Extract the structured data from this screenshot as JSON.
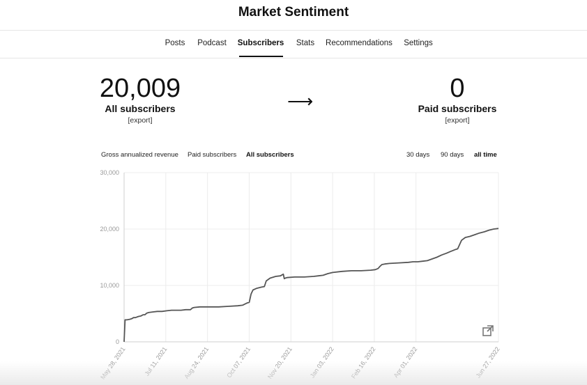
{
  "app": {
    "title": "Market Sentiment"
  },
  "nav": {
    "tabs": [
      {
        "label": "Posts"
      },
      {
        "label": "Podcast"
      },
      {
        "label": "Subscribers",
        "active": true
      },
      {
        "label": "Stats"
      },
      {
        "label": "Recommendations"
      },
      {
        "label": "Settings"
      }
    ]
  },
  "summary": {
    "all": {
      "value": "20,009",
      "label": "All subscribers",
      "export": "[export]"
    },
    "arrow": "⟶",
    "paid": {
      "value": "0",
      "label": "Paid subscribers",
      "export": "[export]"
    }
  },
  "metric_tabs": [
    {
      "label": "Gross annualized revenue"
    },
    {
      "label": "Paid subscribers"
    },
    {
      "label": "All subscribers",
      "active": true
    }
  ],
  "range_tabs": [
    {
      "label": "30 days"
    },
    {
      "label": "90 days"
    },
    {
      "label": "all time",
      "active": true
    }
  ],
  "icons": {
    "external": "open-in-new-window-icon"
  },
  "colors": {
    "line": "#555555",
    "grid": "#ececec",
    "axis": "#cfcfcf",
    "tick": "#9a9a9a"
  },
  "chart_data": {
    "type": "line",
    "title": "",
    "xlabel": "",
    "ylabel": "",
    "ylim": [
      0,
      30000
    ],
    "yticks": [
      0,
      10000,
      20000,
      30000
    ],
    "ytick_labels": [
      "0",
      "10,000",
      "20,000",
      "30,000"
    ],
    "x_range": [
      0,
      395
    ],
    "xticks": [
      0,
      44,
      88,
      132,
      176,
      220,
      264,
      308,
      395
    ],
    "xtick_labels": [
      "May 28, 2021",
      "Jul 11, 2021",
      "Aug 24, 2021",
      "Oct 07, 2021",
      "Nov 20, 2021",
      "Jan 03, 2022",
      "Feb 16, 2022",
      "Apr 01, 2022",
      "Jun 27, 2022"
    ],
    "series": [
      {
        "name": "All subscribers",
        "x": [
          0,
          1,
          3,
          6,
          8,
          10,
          12,
          15,
          18,
          20,
          22,
          24,
          26,
          30,
          35,
          40,
          45,
          50,
          55,
          60,
          65,
          70,
          72,
          74,
          80,
          90,
          100,
          110,
          120,
          125,
          130,
          132,
          134,
          136,
          140,
          145,
          148,
          150,
          154,
          160,
          165,
          168,
          169,
          170,
          172,
          180,
          190,
          200,
          205,
          210,
          215,
          220,
          230,
          240,
          250,
          260,
          265,
          268,
          270,
          272,
          275,
          280,
          290,
          300,
          305,
          310,
          315,
          320,
          330,
          335,
          340,
          344,
          350,
          352,
          356,
          360,
          365,
          370,
          375,
          380,
          385,
          390,
          395
        ],
        "y": [
          0,
          3900,
          3900,
          4000,
          4100,
          4300,
          4300,
          4500,
          4600,
          4800,
          4800,
          5100,
          5200,
          5300,
          5400,
          5400,
          5500,
          5600,
          5600,
          5600,
          5700,
          5700,
          6000,
          6100,
          6200,
          6200,
          6200,
          6300,
          6400,
          6500,
          6900,
          7000,
          8500,
          9200,
          9500,
          9700,
          9800,
          10800,
          11300,
          11600,
          11700,
          12000,
          11200,
          11300,
          11400,
          11500,
          11500,
          11600,
          11700,
          11800,
          12100,
          12300,
          12500,
          12600,
          12600,
          12700,
          12800,
          13000,
          13400,
          13700,
          13800,
          13900,
          14000,
          14100,
          14200,
          14200,
          14300,
          14400,
          15000,
          15400,
          15700,
          16000,
          16400,
          16500,
          18000,
          18500,
          18700,
          19000,
          19300,
          19500,
          19800,
          20000,
          20100
        ]
      }
    ]
  }
}
